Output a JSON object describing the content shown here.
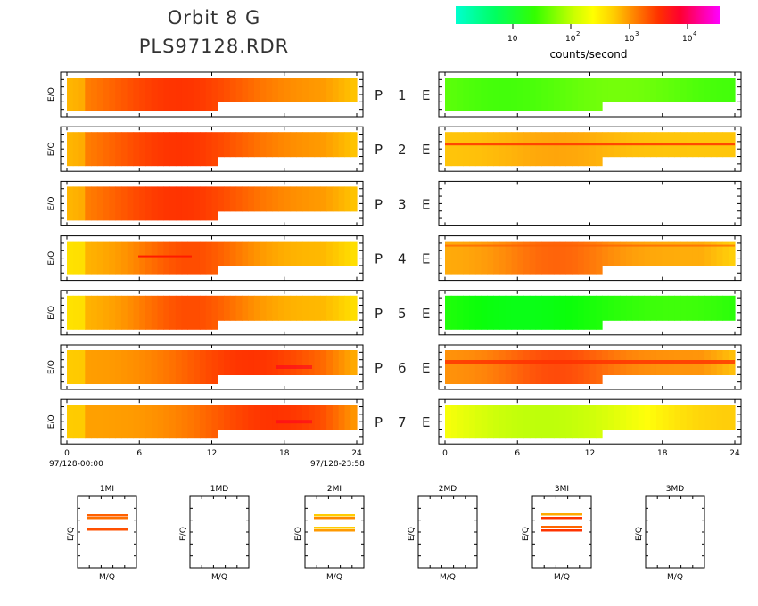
{
  "header": {
    "title_line1": "Orbit 8 G",
    "title_line2": "PLS97128.RDR"
  },
  "colorbar": {
    "label": "counts/second",
    "ticks": [
      "10",
      "10",
      "10",
      "10"
    ],
    "tick_exponents": [
      "",
      "2",
      "3",
      "4"
    ],
    "colors": [
      "#00ffd0",
      "#00ff60",
      "#33ff00",
      "#ccff00",
      "#ffff00",
      "#ffcc00",
      "#ff8000",
      "#ff3000",
      "#ff0030",
      "#ff00a0",
      "#ff00ff"
    ]
  },
  "panel_rows": [
    {
      "p_label": "P",
      "num": "1",
      "e_label": "E"
    },
    {
      "p_label": "P",
      "num": "2",
      "e_label": "E"
    },
    {
      "p_label": "P",
      "num": "3",
      "e_label": "E"
    },
    {
      "p_label": "P",
      "num": "4",
      "e_label": "E"
    },
    {
      "p_label": "P",
      "num": "5",
      "e_label": "E"
    },
    {
      "p_label": "P",
      "num": "6",
      "e_label": "E"
    },
    {
      "p_label": "P",
      "num": "7",
      "e_label": "E"
    }
  ],
  "ylabel": "E/Q",
  "x_ticks": [
    "0",
    "6",
    "12",
    "18",
    "24"
  ],
  "time_start": "97/128-00:00",
  "time_end": "97/128-23:58",
  "small_panels": [
    {
      "title": "1MI",
      "xlabel": "M/Q",
      "ylabel": "E/Q"
    },
    {
      "title": "1MD",
      "xlabel": "M/Q",
      "ylabel": "E/Q"
    },
    {
      "title": "2MI",
      "xlabel": "M/Q",
      "ylabel": "E/Q"
    },
    {
      "title": "2MD",
      "xlabel": "M/Q",
      "ylabel": "E/Q"
    },
    {
      "title": "3MI",
      "xlabel": "M/Q",
      "ylabel": "E/Q"
    },
    {
      "title": "3MD",
      "xlabel": "M/Q",
      "ylabel": "E/Q"
    }
  ],
  "chart_data": {
    "type": "heatmap",
    "x_axis": {
      "range": [
        0,
        24
      ],
      "ticks": [
        0,
        6,
        12,
        18,
        24
      ],
      "units": "hours"
    },
    "color_scale": {
      "label": "counts/second",
      "log": true,
      "range_approx": [
        1,
        50000
      ]
    },
    "left_column": [
      {
        "panel": "P 1",
        "dominant": "orange-red",
        "peak_hours": [
          6,
          14
        ]
      },
      {
        "panel": "P 2",
        "dominant": "orange-red",
        "peak_hours": [
          6,
          14
        ]
      },
      {
        "panel": "P 3",
        "dominant": "orange-red",
        "peak_hours": [
          6,
          14
        ]
      },
      {
        "panel": "P 4",
        "dominant": "orange",
        "peak_hours": [
          8,
          13
        ]
      },
      {
        "panel": "P 5",
        "dominant": "orange",
        "peak_hours": [
          8,
          13
        ]
      },
      {
        "panel": "P 6",
        "dominant": "orange-red",
        "peak_hours": [
          12,
          19
        ]
      },
      {
        "panel": "P 7",
        "dominant": "orange-red",
        "peak_hours": [
          13,
          20
        ]
      }
    ],
    "right_column": [
      {
        "panel": "E 1",
        "dominant": "green"
      },
      {
        "panel": "E 2",
        "dominant": "yellow-orange",
        "band": true
      },
      {
        "panel": "E 3",
        "dominant": "none"
      },
      {
        "panel": "E 4",
        "dominant": "orange"
      },
      {
        "panel": "E 5",
        "dominant": "green"
      },
      {
        "panel": "E 6",
        "dominant": "orange",
        "band": true
      },
      {
        "panel": "E 7",
        "dominant": "yellow-green"
      }
    ],
    "small_panels": [
      {
        "title": "1MI",
        "lines": 3
      },
      {
        "title": "1MD",
        "lines": 0
      },
      {
        "title": "2MI",
        "lines": 3
      },
      {
        "title": "2MD",
        "lines": 0
      },
      {
        "title": "3MI",
        "lines": 4
      },
      {
        "title": "3MD",
        "lines": 0
      }
    ]
  }
}
